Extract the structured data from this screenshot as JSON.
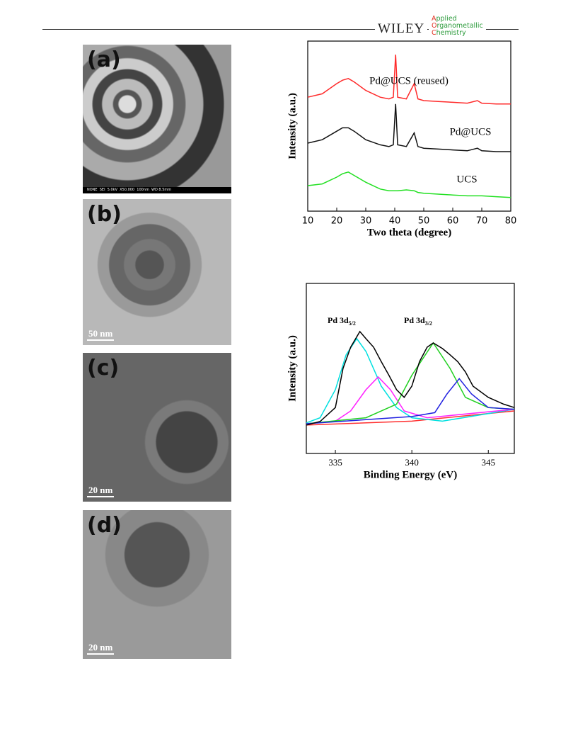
{
  "header": {
    "brand": "WILEY",
    "journal": [
      "Applied",
      "Organometallic",
      "Chemistry"
    ]
  },
  "figure_panels": [
    {
      "label": "(a)",
      "info": "NONE  SEI  5.0kV  X50,000  100nm  WD 8.5mm"
    },
    {
      "label": "(b)",
      "scale": "50 nm"
    },
    {
      "label": "(c)",
      "scale": "20 nm"
    },
    {
      "label": "(d)",
      "scale": "20 nm"
    }
  ],
  "chart_data": [
    {
      "type": "line",
      "xlabel": "Two theta (degree)",
      "ylabel": "Intensity (a.u.)",
      "xlim": [
        10,
        80
      ],
      "xticks": [
        10,
        20,
        30,
        40,
        50,
        60,
        70,
        80
      ],
      "ylim": [
        0,
        100
      ],
      "x": [
        10,
        15,
        20,
        22,
        24,
        26,
        30,
        35,
        38,
        39.5,
        40.3,
        41,
        44,
        46.7,
        48,
        50,
        55,
        60,
        65,
        68.5,
        70,
        75,
        80
      ],
      "series": [
        {
          "name": "Pd@UCS (reused)",
          "color": "#ff2a2a",
          "values": [
            67,
            69,
            75,
            77,
            78,
            76,
            71,
            67,
            66,
            67,
            92,
            67,
            66,
            75,
            66,
            65,
            64.5,
            64,
            63.5,
            65,
            63.5,
            63,
            63
          ]
        },
        {
          "name": "Pd@UCS",
          "color": "#111111",
          "values": [
            40,
            42,
            47,
            49,
            49,
            47,
            42,
            39,
            38,
            39,
            63,
            39,
            38,
            46,
            38,
            37,
            36.5,
            36,
            35.5,
            37,
            35.5,
            35,
            35
          ]
        },
        {
          "name": "UCS",
          "color": "#22e022",
          "values": [
            15,
            16,
            20,
            22,
            23,
            21,
            17,
            13,
            12,
            12,
            12,
            12,
            12.5,
            12,
            11,
            10.5,
            10,
            9.5,
            9,
            9,
            9,
            8.5,
            8
          ]
        }
      ]
    },
    {
      "type": "line",
      "xlabel": "Binding Energy (eV)",
      "ylabel": "Intensity (a.u.)",
      "xlim": [
        333.1,
        346.7
      ],
      "xticks": [
        335,
        340,
        345
      ],
      "ylim": [
        0,
        100
      ],
      "annotations": [
        {
          "text": "Pd 3d",
          "sub": "5/2"
        },
        {
          "text": "Pd 3d",
          "sub": "3/2"
        }
      ],
      "series": [
        {
          "color": "#ff3030",
          "x": [
            333.1,
            340,
            346.7
          ],
          "values": [
            16.7,
            19,
            25
          ]
        },
        {
          "color": "#00e0e0",
          "x": [
            333.1,
            334,
            335,
            335.7,
            336.4,
            337,
            338,
            339,
            340,
            342,
            346.7
          ],
          "values": [
            18,
            21,
            37.5,
            58,
            67.5,
            60,
            39.6,
            27,
            21,
            19,
            26
          ]
        },
        {
          "color": "#ff20ff",
          "x": [
            333.1,
            335,
            336,
            337,
            337.8,
            338.6,
            339.5,
            341,
            346.7
          ],
          "values": [
            17.5,
            19,
            25,
            37.5,
            45,
            37.5,
            25,
            21,
            26
          ]
        },
        {
          "color": "#20d020",
          "x": [
            333.1,
            337,
            339,
            340,
            341.4,
            342.5,
            343.5,
            345,
            346.7
          ],
          "values": [
            17.5,
            21,
            29,
            46,
            65,
            50,
            33,
            27,
            26
          ]
        },
        {
          "color": "#2020e0",
          "x": [
            333.1,
            340,
            341.5,
            342.3,
            343.1,
            343.9,
            345,
            346.7
          ],
          "values": [
            17.5,
            21.7,
            24,
            35,
            44,
            35,
            27,
            26
          ]
        },
        {
          "color": "#000000",
          "x": [
            333.1,
            334,
            335,
            335.5,
            336,
            336.6,
            337,
            337.5,
            338,
            338.5,
            339,
            339.5,
            340,
            340.5,
            341,
            341.4,
            342,
            342.5,
            343,
            343.5,
            344,
            345,
            346,
            346.7
          ],
          "values": [
            16.7,
            18.8,
            27,
            50,
            62.5,
            71.7,
            67.5,
            62.5,
            54,
            46,
            37.5,
            33,
            39.6,
            54,
            62.5,
            65,
            61.7,
            58,
            54,
            48,
            39.6,
            33,
            29,
            27
          ]
        }
      ]
    }
  ]
}
